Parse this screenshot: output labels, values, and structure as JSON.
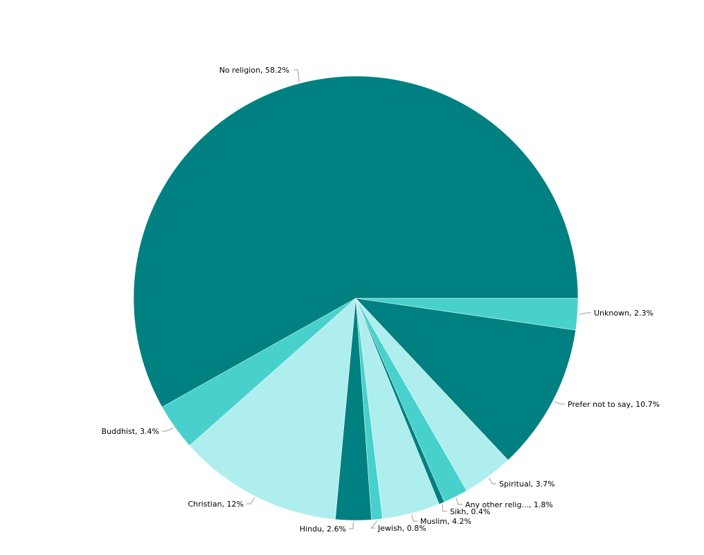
{
  "chart_data": {
    "type": "pie",
    "slices": [
      {
        "name": "Unknown",
        "label": "Unknown, 2.3%",
        "value": 2.3,
        "color": "#48d1cc"
      },
      {
        "name": "Prefer not to say",
        "label": "Prefer not to say, 10.7%",
        "value": 10.7,
        "color": "#008080"
      },
      {
        "name": "Spiritual",
        "label": "Spiritual, 3.7%",
        "value": 3.7,
        "color": "#afeeee"
      },
      {
        "name": "Any other religion",
        "label": "Any other relig..., 1.8%",
        "value": 1.8,
        "color": "#48d1cc"
      },
      {
        "name": "Sikh",
        "label": "Sikh, 0.4%",
        "value": 0.4,
        "color": "#008080"
      },
      {
        "name": "Muslim",
        "label": "Muslim, 4.2%",
        "value": 4.2,
        "color": "#afeeee"
      },
      {
        "name": "Jewish",
        "label": "Jewish, 0.8%",
        "value": 0.8,
        "color": "#48d1cc"
      },
      {
        "name": "Hindu",
        "label": "Hindu, 2.6%",
        "value": 2.6,
        "color": "#008080"
      },
      {
        "name": "Christian",
        "label": "Christian, 12%",
        "value": 12,
        "color": "#afeeee"
      },
      {
        "name": "Buddhist",
        "label": "Buddhist, 3.4%",
        "value": 3.4,
        "color": "#48d1cc"
      },
      {
        "name": "No religion",
        "label": "No religion, 58.2%",
        "value": 58.2,
        "color": "#008080"
      }
    ],
    "start": "east",
    "direction": "clockwise"
  }
}
